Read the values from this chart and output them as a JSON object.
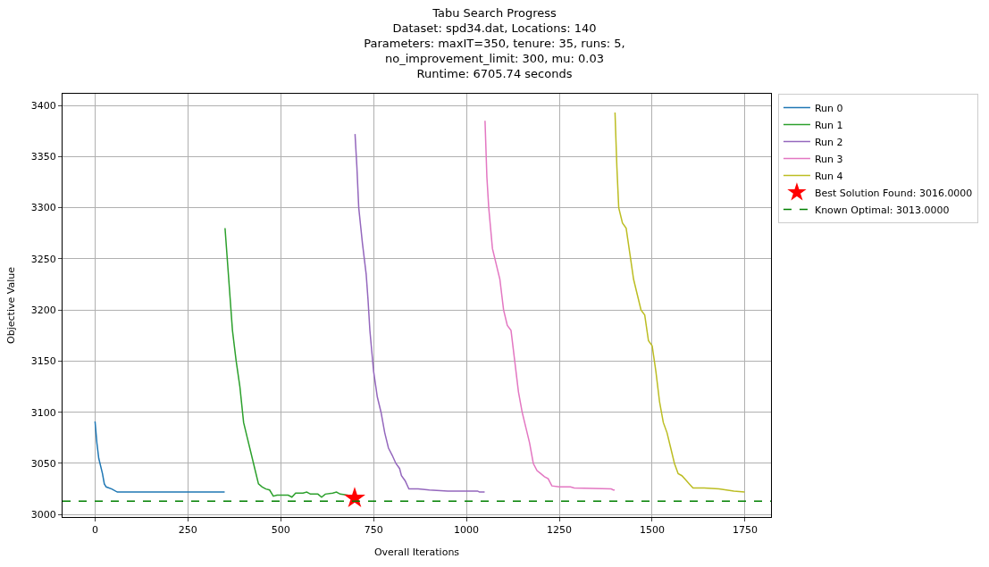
{
  "chart_data": {
    "type": "line",
    "title": "Tabu Search Progress\nDataset: spd34.dat, Locations: 140\nParameters: maxIT=350, tenure: 35, runs: 5,\nno_improvement_limit: 300, mu: 0.03\nRuntime: 6705.74 seconds",
    "xlabel": "Overall Iterations",
    "ylabel": "Objective Value",
    "series": [
      {
        "name": "Run 0",
        "color": "#1f77b4",
        "x": [
          0,
          5,
          10,
          20,
          25,
          30,
          45,
          60,
          349
        ],
        "values": [
          3091,
          3070,
          3055,
          3040,
          3030,
          3027,
          3025,
          3022,
          3022
        ]
      },
      {
        "name": "Run 1",
        "color": "#2ca02c",
        "x": [
          350,
          360,
          370,
          380,
          390,
          400,
          410,
          420,
          430,
          440,
          450,
          460,
          470,
          480,
          490,
          520,
          530,
          540,
          560,
          570,
          580,
          600,
          610,
          620,
          640,
          650,
          660,
          680,
          699
        ],
        "values": [
          3280,
          3230,
          3180,
          3150,
          3125,
          3090,
          3075,
          3060,
          3045,
          3030,
          3027,
          3025,
          3024,
          3018,
          3019,
          3019,
          3017,
          3021,
          3021,
          3022,
          3020,
          3020,
          3017,
          3020,
          3021,
          3022,
          3020,
          3019,
          3016
        ]
      },
      {
        "name": "Run 2",
        "color": "#9467bd",
        "x": [
          700,
          705,
          710,
          720,
          730,
          735,
          740,
          745,
          750,
          760,
          770,
          780,
          790,
          800,
          810,
          820,
          825,
          835,
          845,
          870,
          900,
          950,
          1030,
          1035,
          1049
        ],
        "values": [
          3372,
          3340,
          3300,
          3265,
          3235,
          3210,
          3180,
          3160,
          3140,
          3115,
          3100,
          3080,
          3065,
          3058,
          3050,
          3045,
          3038,
          3033,
          3025,
          3025,
          3024,
          3023,
          3023,
          3022,
          3022
        ]
      },
      {
        "name": "Run 3",
        "color": "#e377c2",
        "x": [
          1050,
          1055,
          1060,
          1070,
          1080,
          1090,
          1100,
          1110,
          1120,
          1130,
          1140,
          1150,
          1160,
          1170,
          1180,
          1190,
          1200,
          1210,
          1220,
          1230,
          1250,
          1280,
          1290,
          1390,
          1395,
          1399
        ],
        "values": [
          3385,
          3330,
          3300,
          3260,
          3245,
          3230,
          3200,
          3185,
          3180,
          3150,
          3120,
          3100,
          3085,
          3070,
          3050,
          3043,
          3040,
          3037,
          3035,
          3028,
          3027,
          3027,
          3026,
          3025,
          3024,
          3024
        ]
      },
      {
        "name": "Run 4",
        "color": "#bcbd22",
        "x": [
          1400,
          1405,
          1410,
          1420,
          1430,
          1440,
          1450,
          1460,
          1470,
          1480,
          1490,
          1500,
          1510,
          1520,
          1530,
          1540,
          1550,
          1560,
          1570,
          1580,
          1590,
          1600,
          1610,
          1640,
          1680,
          1700,
          1720,
          1749
        ],
        "values": [
          3393,
          3340,
          3300,
          3285,
          3280,
          3255,
          3230,
          3215,
          3200,
          3195,
          3170,
          3165,
          3140,
          3110,
          3090,
          3080,
          3065,
          3050,
          3040,
          3038,
          3034,
          3030,
          3026,
          3026,
          3025,
          3024,
          3023,
          3022
        ]
      },
      {
        "name": "Best Solution Found: 3016.0000",
        "type": "scatter",
        "marker": "star",
        "color": "#ff0000",
        "x": [
          699
        ],
        "values": [
          3016
        ]
      }
    ],
    "ref_lines": [
      {
        "axis": "y",
        "value": 3013,
        "label": "Known Optimal: 3013.0000",
        "color": "#008000",
        "line_style": "dashed"
      }
    ],
    "xlim": [
      -87.5,
      1820
    ],
    "xticks": [
      0,
      250,
      500,
      750,
      1000,
      1250,
      1500,
      1750
    ],
    "ylim": [
      2997.6,
      3411.4
    ],
    "yticks": [
      3000,
      3050,
      3100,
      3150,
      3200,
      3250,
      3300,
      3350,
      3400
    ],
    "grid": true,
    "legend": "right"
  }
}
